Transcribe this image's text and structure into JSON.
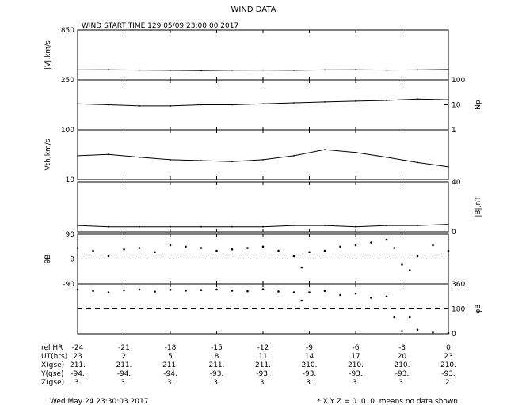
{
  "title": "WIND DATA",
  "subtitle": "WIND START TIME 129 05/09 23:00:00 2017",
  "chart_data": [
    {
      "type": "line",
      "panel": "speed",
      "ylabel": "|V|,km/s",
      "ylim": [
        250,
        850
      ],
      "left_ticks": [
        "850",
        "250"
      ],
      "x": [
        -24,
        -22,
        -20,
        -18,
        -16,
        -14,
        -12,
        -10,
        -8,
        -6,
        -4,
        -2,
        0
      ],
      "values": [
        370,
        372,
        368,
        365,
        362,
        366,
        368,
        365,
        370,
        372,
        368,
        370,
        375
      ]
    },
    {
      "type": "line",
      "panel": "density",
      "ylabel": "Np",
      "scale": "log",
      "ylim": [
        1,
        100
      ],
      "right_ticks": [
        "100",
        "10",
        "1"
      ],
      "x": [
        -24,
        -22,
        -20,
        -18,
        -16,
        -14,
        -12,
        -10,
        -8,
        -6,
        -4,
        -2,
        0
      ],
      "values": [
        11,
        10,
        9,
        9,
        10,
        10,
        11,
        12,
        13,
        14,
        15,
        17,
        16
      ]
    },
    {
      "type": "line",
      "panel": "thermal",
      "ylabel": "Vth,km/s",
      "scale": "log",
      "ylim": [
        10,
        100
      ],
      "left_ticks": [
        "100",
        "10"
      ],
      "x": [
        -24,
        -22,
        -20,
        -18,
        -16,
        -14,
        -12,
        -10,
        -8,
        -6,
        -4,
        -2,
        0
      ],
      "values": [
        30,
        32,
        28,
        25,
        24,
        23,
        25,
        30,
        40,
        35,
        28,
        22,
        18
      ]
    },
    {
      "type": "line",
      "panel": "field",
      "ylabel": "|B|,nT",
      "ylim": [
        0,
        40
      ],
      "right_ticks": [
        "40",
        "0"
      ],
      "x": [
        -24,
        -22,
        -20,
        -18,
        -16,
        -14,
        -12,
        -10,
        -8,
        -6,
        -4,
        -2,
        0
      ],
      "values": [
        5,
        4,
        4,
        4,
        4,
        4,
        4,
        5,
        5,
        4,
        5,
        5,
        6
      ]
    },
    {
      "type": "scatter",
      "panel": "thetaB",
      "ylabel": "θB",
      "ylim": [
        -90,
        90
      ],
      "left_ticks": [
        "90",
        "0",
        "-90"
      ],
      "x": [
        -24,
        -23,
        -22,
        -21,
        -20,
        -19,
        -18,
        -17,
        -16,
        -15,
        -14,
        -13,
        -12,
        -11,
        -10,
        -9.5,
        -9,
        -8,
        -7,
        -6,
        -5,
        -4,
        -3.5,
        -3,
        -2.5,
        -2,
        -1,
        0
      ],
      "values": [
        40,
        30,
        10,
        35,
        40,
        25,
        50,
        45,
        40,
        30,
        35,
        40,
        45,
        30,
        10,
        -30,
        25,
        30,
        45,
        50,
        60,
        70,
        40,
        -20,
        -40,
        10,
        50,
        30
      ]
    },
    {
      "type": "scatter",
      "panel": "phiB",
      "ylabel": "φB",
      "ylim": [
        0,
        360
      ],
      "right_ticks": [
        "360",
        "180",
        "0"
      ],
      "x": [
        -24,
        -23,
        -22,
        -21,
        -20,
        -19,
        -18,
        -17,
        -16,
        -15,
        -14,
        -13,
        -12,
        -11,
        -10,
        -9.5,
        -9,
        -8,
        -7,
        -6,
        -5,
        -4,
        -3.5,
        -3,
        -2.5,
        -2,
        -1,
        0
      ],
      "values": [
        320,
        310,
        300,
        315,
        320,
        305,
        318,
        312,
        316,
        320,
        312,
        308,
        322,
        306,
        300,
        240,
        300,
        310,
        280,
        290,
        260,
        270,
        120,
        20,
        120,
        30,
        10,
        5
      ]
    }
  ],
  "x_axis": {
    "range": [
      -24,
      0
    ],
    "rows": [
      {
        "label": "rel HR",
        "values": [
          "-24",
          "-21",
          "-18",
          "-15",
          "-12",
          "-9",
          "-6",
          "-3",
          "0"
        ]
      },
      {
        "label": "UT(hrs)",
        "values": [
          "23",
          "2",
          "5",
          "8",
          "11",
          "14",
          "17",
          "20",
          "23"
        ]
      },
      {
        "label": "X(gse)",
        "values": [
          "211.",
          "211.",
          "211.",
          "211.",
          "211.",
          "210.",
          "210.",
          "210.",
          "210."
        ]
      },
      {
        "label": "Y(gse)",
        "values": [
          "-94.",
          "-94.",
          "-94.",
          "-93.",
          "-93.",
          "-93.",
          "-93.",
          "-93.",
          "-93."
        ]
      },
      {
        "label": "Z(gse)",
        "values": [
          "3.",
          "3.",
          "3.",
          "3.",
          "3.",
          "3.",
          "3.",
          "3.",
          "2."
        ]
      }
    ]
  },
  "footer": {
    "timestamp": "Wed May 24 23:30:03 2017",
    "note": "* X Y Z = 0. 0. 0. means no data shown"
  }
}
